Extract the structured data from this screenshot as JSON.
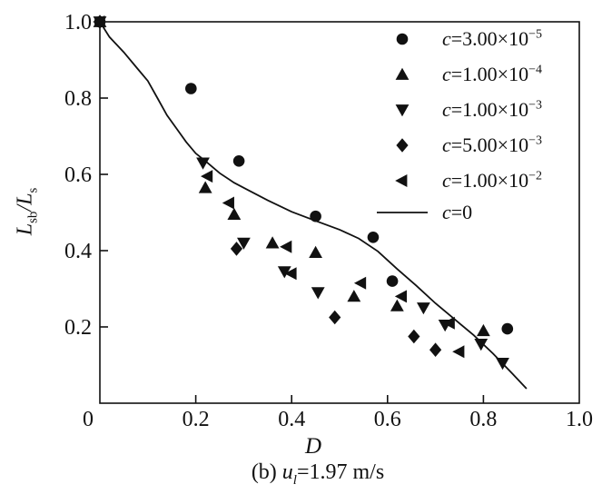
{
  "colors": {
    "marker": "#111111",
    "line": "#111111",
    "text": "#111111",
    "background": "#ffffff"
  },
  "figure": {
    "caption": {
      "prefix": "(b) ",
      "variable": "u",
      "subscript": "l",
      "rest": "=1.97 m/s"
    }
  },
  "chart_data": {
    "type": "scatter",
    "title": "",
    "xlabel": "D",
    "ylabel": "Lsb/Ls",
    "ylabel_parts": {
      "v1": "L",
      "s1": "sb",
      "sep": "/",
      "v2": "L",
      "s2": "s"
    },
    "xlim": [
      0,
      1.0
    ],
    "ylim": [
      0,
      1.0
    ],
    "grid": false,
    "legend_position": "top-right",
    "xticks": [
      {
        "v": 0,
        "label": "0",
        "mark": false,
        "dx": -13
      },
      {
        "v": 0.2,
        "label": "0.2",
        "mark": true,
        "dx": 0
      },
      {
        "v": 0.4,
        "label": "0.4",
        "mark": true,
        "dx": 0
      },
      {
        "v": 0.6,
        "label": "0.6",
        "mark": true,
        "dx": 0
      },
      {
        "v": 0.8,
        "label": "0.8",
        "mark": true,
        "dx": 0
      },
      {
        "v": 1.0,
        "label": "1.0",
        "mark": false,
        "dx": 0
      }
    ],
    "yticks": [
      {
        "v": 1.0,
        "label": "1.0",
        "mark": false
      },
      {
        "v": 0.8,
        "label": "0.8",
        "mark": true
      },
      {
        "v": 0.6,
        "label": "0.6",
        "mark": true
      },
      {
        "v": 0.4,
        "label": "0.4",
        "mark": true
      },
      {
        "v": 0.2,
        "label": "0.2",
        "mark": true
      }
    ],
    "series": [
      {
        "name": "c=3.00e-5",
        "marker": "circle",
        "label_c": "c",
        "label_val": "=3.00×10",
        "label_exp": "−5",
        "points": [
          [
            0,
            1.0
          ],
          [
            0.19,
            0.825
          ],
          [
            0.29,
            0.635
          ],
          [
            0.45,
            0.49
          ],
          [
            0.57,
            0.435
          ],
          [
            0.61,
            0.32
          ],
          [
            0.85,
            0.195
          ]
        ]
      },
      {
        "name": "c=1.00e-4",
        "marker": "triangle-up",
        "label_c": "c",
        "label_val": "=1.00×10",
        "label_exp": "−4",
        "points": [
          [
            0,
            1.0
          ],
          [
            0.22,
            0.565
          ],
          [
            0.28,
            0.495
          ],
          [
            0.36,
            0.42
          ],
          [
            0.45,
            0.395
          ],
          [
            0.53,
            0.28
          ],
          [
            0.62,
            0.255
          ],
          [
            0.8,
            0.19
          ]
        ]
      },
      {
        "name": "c=1.00e-3",
        "marker": "triangle-down",
        "label_c": "c",
        "label_val": "=1.00×10",
        "label_exp": "−3",
        "points": [
          [
            0,
            1.0
          ],
          [
            0.215,
            0.63
          ],
          [
            0.3,
            0.42
          ],
          [
            0.385,
            0.345
          ],
          [
            0.455,
            0.29
          ],
          [
            0.675,
            0.25
          ],
          [
            0.72,
            0.205
          ],
          [
            0.795,
            0.155
          ],
          [
            0.84,
            0.105
          ]
        ]
      },
      {
        "name": "c=5.00e-3",
        "marker": "diamond",
        "label_c": "c",
        "label_val": "=5.00×10",
        "label_exp": "−3",
        "points": [
          [
            0,
            1.0
          ],
          [
            0.285,
            0.405
          ],
          [
            0.49,
            0.225
          ],
          [
            0.655,
            0.175
          ],
          [
            0.7,
            0.14
          ]
        ]
      },
      {
        "name": "c=1.00e-2",
        "marker": "triangle-left",
        "label_c": "c",
        "label_val": "=1.00×10",
        "label_exp": "−2",
        "points": [
          [
            0,
            1.0
          ],
          [
            0.225,
            0.595
          ],
          [
            0.27,
            0.525
          ],
          [
            0.39,
            0.41
          ],
          [
            0.4,
            0.34
          ],
          [
            0.545,
            0.315
          ],
          [
            0.63,
            0.28
          ],
          [
            0.73,
            0.21
          ],
          [
            0.75,
            0.135
          ]
        ]
      },
      {
        "name": "c=0",
        "marker": "line",
        "label_c": "c",
        "label_val": "=0",
        "label_exp": "",
        "points": [
          [
            0,
            1.0
          ],
          [
            0.02,
            0.96
          ],
          [
            0.05,
            0.92
          ],
          [
            0.08,
            0.875
          ],
          [
            0.1,
            0.845
          ],
          [
            0.12,
            0.8
          ],
          [
            0.14,
            0.755
          ],
          [
            0.16,
            0.72
          ],
          [
            0.18,
            0.685
          ],
          [
            0.2,
            0.655
          ],
          [
            0.22,
            0.635
          ],
          [
            0.25,
            0.603
          ],
          [
            0.28,
            0.578
          ],
          [
            0.31,
            0.558
          ],
          [
            0.35,
            0.532
          ],
          [
            0.4,
            0.502
          ],
          [
            0.45,
            0.478
          ],
          [
            0.5,
            0.455
          ],
          [
            0.54,
            0.432
          ],
          [
            0.58,
            0.398
          ],
          [
            0.62,
            0.352
          ],
          [
            0.66,
            0.308
          ],
          [
            0.7,
            0.262
          ],
          [
            0.74,
            0.22
          ],
          [
            0.78,
            0.178
          ],
          [
            0.82,
            0.13
          ],
          [
            0.86,
            0.078
          ],
          [
            0.89,
            0.038
          ]
        ]
      }
    ]
  }
}
